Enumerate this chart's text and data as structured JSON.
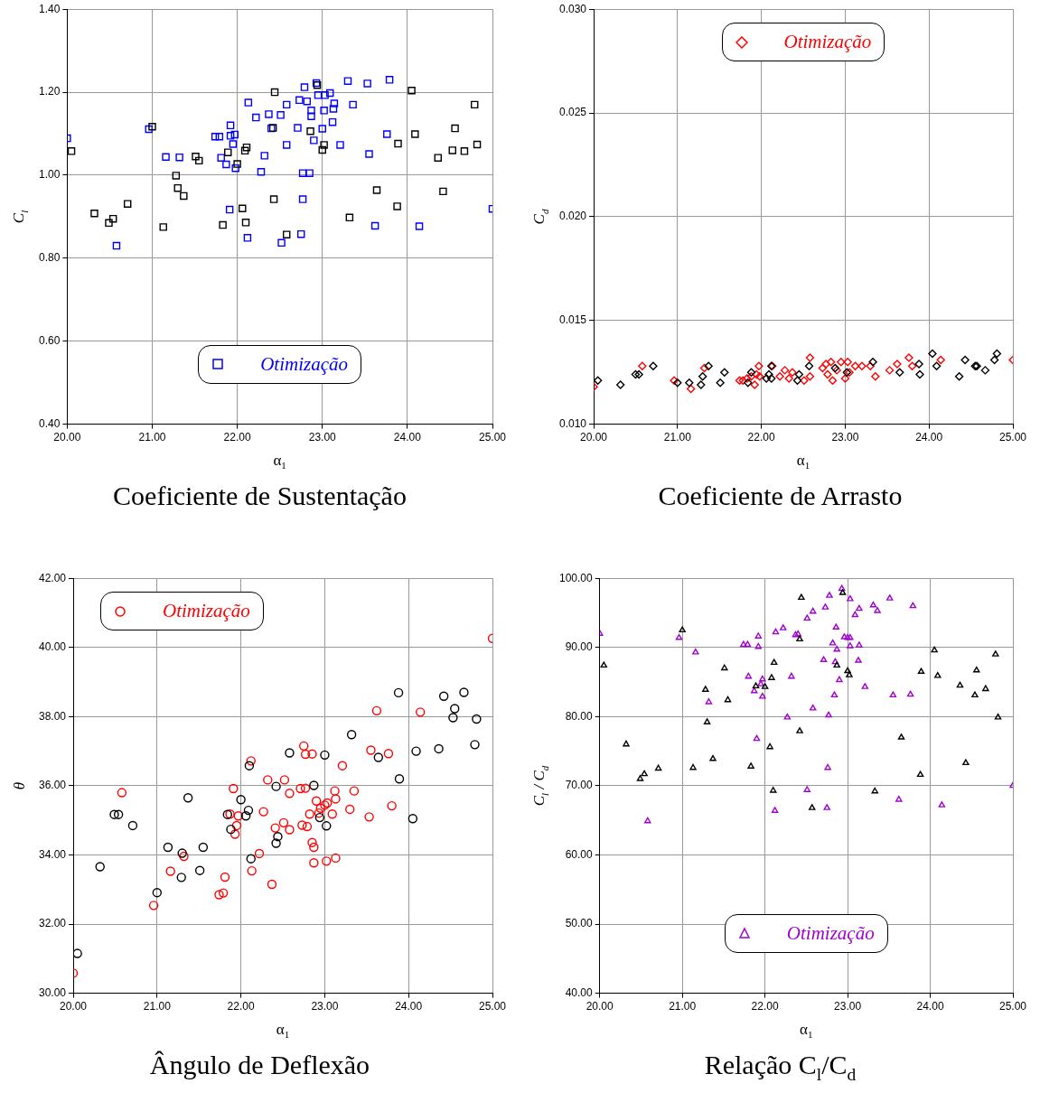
{
  "chart_data": [
    {
      "type": "scatter",
      "title": "Coeficiente de Sustentação",
      "xlabel": "α$_{1}$",
      "ylabel": "C$_{l}$",
      "xlim": [
        20,
        25
      ],
      "ylim": [
        0.4,
        1.4
      ],
      "xticks": [
        {
          "value": 20,
          "label": "20.00"
        },
        {
          "value": 21,
          "label": "21.00"
        },
        {
          "value": 22,
          "label": "22.00"
        },
        {
          "value": 23,
          "label": "23.00"
        },
        {
          "value": 24,
          "label": "24.00"
        },
        {
          "value": 25,
          "label": "25.00"
        }
      ],
      "yticks": [
        {
          "value": 0.4,
          "label": "0.40"
        },
        {
          "value": 0.6,
          "label": "0.60"
        },
        {
          "value": 0.8,
          "label": "0.80"
        },
        {
          "value": 1.0,
          "label": "1.00"
        },
        {
          "value": 1.2,
          "label": "1.20"
        },
        {
          "value": 1.4,
          "label": "1.40"
        }
      ],
      "grid": true,
      "legend": "bottom center",
      "marker": "square",
      "series": [
        {
          "color": "#000000",
          "x": [
            20.05,
            21.0,
            22.44,
            22.94,
            24.05,
            24.79,
            24.56,
            24.09,
            23.89,
            24.82,
            24.53,
            24.67,
            24.36,
            22.42,
            22.86,
            23.02,
            23.0,
            22.11,
            22.09,
            21.89,
            21.51,
            21.55,
            22.0,
            21.28,
            21.3,
            21.37,
            20.71,
            20.32,
            20.54,
            20.49,
            21.13,
            21.83,
            22.06,
            22.1,
            22.43,
            22.58,
            23.32,
            23.64,
            23.88,
            24.42
          ],
          "values": [
            1.058,
            1.117,
            1.2,
            1.217,
            1.204,
            1.17,
            1.113,
            1.099,
            1.076,
            1.074,
            1.06,
            1.058,
            1.042,
            1.114,
            1.106,
            1.073,
            1.061,
            1.067,
            1.059,
            1.055,
            1.045,
            1.035,
            1.027,
            0.999,
            0.969,
            0.95,
            0.931,
            0.908,
            0.895,
            0.885,
            0.875,
            0.88,
            0.92,
            0.886,
            0.942,
            0.857,
            0.898,
            0.964,
            0.925,
            0.961
          ]
        },
        {
          "name": "Otimização",
          "color": "#0000ff",
          "x": [
            20.0,
            20.96,
            21.16,
            21.32,
            21.74,
            21.79,
            21.92,
            21.92,
            21.97,
            21.95,
            21.81,
            21.87,
            21.98,
            22.13,
            22.22,
            22.37,
            22.51,
            22.58,
            22.73,
            22.82,
            22.79,
            22.93,
            22.95,
            23.03,
            23.09,
            23.14,
            23.13,
            22.87,
            22.87,
            23.02,
            23.12,
            23.3,
            23.53,
            23.79,
            23.36,
            22.71,
            23.0,
            22.4,
            22.58,
            22.9,
            23.21,
            23.55,
            23.76,
            22.32,
            22.28,
            22.77,
            22.85,
            21.91,
            22.77,
            22.12,
            22.52,
            22.75,
            23.62,
            24.14,
            25.0,
            20.58
          ],
          "values": [
            1.089,
            1.111,
            1.044,
            1.043,
            1.093,
            1.093,
            1.12,
            1.095,
            1.098,
            1.075,
            1.042,
            1.026,
            1.017,
            1.175,
            1.139,
            1.147,
            1.145,
            1.17,
            1.181,
            1.178,
            1.212,
            1.222,
            1.193,
            1.193,
            1.198,
            1.173,
            1.16,
            1.156,
            1.142,
            1.156,
            1.128,
            1.227,
            1.221,
            1.23,
            1.17,
            1.114,
            1.112,
            1.113,
            1.073,
            1.084,
            1.073,
            1.051,
            1.099,
            1.047,
            1.008,
            1.005,
            1.005,
            0.917,
            0.942,
            0.849,
            0.837,
            0.858,
            0.878,
            0.877,
            0.919,
            0.83
          ]
        }
      ]
    },
    {
      "type": "scatter",
      "title": "Coeficiente de Arrasto",
      "xlabel": "α$_{1}$",
      "ylabel": "C$_{d}$",
      "xlim": [
        20,
        25
      ],
      "ylim": [
        0.01,
        0.03
      ],
      "xticks": [
        {
          "value": 20,
          "label": "20.00"
        },
        {
          "value": 21,
          "label": "21.00"
        },
        {
          "value": 22,
          "label": "22.00"
        },
        {
          "value": 23,
          "label": "23.00"
        },
        {
          "value": 24,
          "label": "24.00"
        },
        {
          "value": 25,
          "label": "25.00"
        }
      ],
      "yticks": [
        {
          "value": 0.01,
          "label": "0.010"
        },
        {
          "value": 0.015,
          "label": "0.015"
        },
        {
          "value": 0.02,
          "label": "0.020"
        },
        {
          "value": 0.025,
          "label": "0.025"
        },
        {
          "value": 0.03,
          "label": "0.030"
        }
      ],
      "grid": true,
      "legend": "top center",
      "marker": "diamond",
      "series": [
        {
          "color": "#000000",
          "x": [
            20.05,
            20.32,
            20.5,
            20.54,
            20.71,
            21.0,
            21.14,
            21.28,
            21.3,
            21.37,
            21.51,
            21.56,
            21.84,
            21.88,
            22.06,
            22.09,
            22.12,
            22.12,
            22.45,
            22.43,
            22.57,
            22.88,
            23.02,
            23.33,
            23.65,
            23.88,
            23.89,
            24.04,
            24.09,
            24.36,
            24.43,
            24.55,
            24.57,
            24.67,
            24.78,
            24.81
          ],
          "values": [
            0.0121,
            0.0119,
            0.0124,
            0.0124,
            0.0128,
            0.012,
            0.012,
            0.0119,
            0.0123,
            0.0128,
            0.012,
            0.0125,
            0.012,
            0.0125,
            0.0122,
            0.0124,
            0.0122,
            0.0128,
            0.0124,
            0.0121,
            0.0128,
            0.0127,
            0.0125,
            0.013,
            0.0125,
            0.0129,
            0.0124,
            0.0134,
            0.0128,
            0.0123,
            0.0131,
            0.0128,
            0.0128,
            0.0126,
            0.0131,
            0.0134
          ]
        },
        {
          "name": "Otimização",
          "color": "#ff0000",
          "x": [
            20.0,
            20.58,
            20.96,
            21.16,
            21.32,
            21.74,
            21.78,
            21.83,
            21.88,
            21.92,
            21.94,
            21.97,
            21.98,
            22.13,
            22.22,
            22.28,
            22.33,
            22.37,
            22.51,
            22.58,
            22.58,
            22.73,
            22.77,
            22.83,
            22.79,
            22.85,
            22.9,
            22.95,
            23.03,
            23.05,
            23.0,
            23.12,
            23.2,
            23.3,
            23.36,
            23.53,
            23.62,
            23.76,
            23.8,
            24.14,
            25.0
          ],
          "values": [
            0.0118,
            0.0128,
            0.0121,
            0.0117,
            0.0127,
            0.0121,
            0.0121,
            0.0122,
            0.0123,
            0.0119,
            0.0124,
            0.0128,
            0.0123,
            0.0128,
            0.0123,
            0.0126,
            0.0122,
            0.0125,
            0.0121,
            0.0123,
            0.0132,
            0.0127,
            0.0129,
            0.013,
            0.0124,
            0.0121,
            0.0126,
            0.013,
            0.013,
            0.0125,
            0.0122,
            0.0128,
            0.0128,
            0.0128,
            0.0123,
            0.0126,
            0.0129,
            0.0132,
            0.0128,
            0.0131,
            0.0131
          ]
        }
      ]
    },
    {
      "type": "scatter",
      "title": "Ângulo de Deflexão",
      "xlabel": "α$_{1}$",
      "ylabel": "θ",
      "xlim": [
        20,
        25
      ],
      "ylim": [
        30,
        42
      ],
      "xticks": [
        {
          "value": 20,
          "label": "20.00"
        },
        {
          "value": 21,
          "label": "21.00"
        },
        {
          "value": 22,
          "label": "22.00"
        },
        {
          "value": 23,
          "label": "23.00"
        },
        {
          "value": 24,
          "label": "24.00"
        },
        {
          "value": 25,
          "label": "25.00"
        }
      ],
      "yticks": [
        {
          "value": 30,
          "label": "30.00"
        },
        {
          "value": 32,
          "label": "32.00"
        },
        {
          "value": 34,
          "label": "34.00"
        },
        {
          "value": 36,
          "label": "36.00"
        },
        {
          "value": 38,
          "label": "38.00"
        },
        {
          "value": 40,
          "label": "40.00"
        },
        {
          "value": 42,
          "label": "42.00"
        }
      ],
      "grid": true,
      "legend": "top left",
      "marker": "circle",
      "series": [
        {
          "color": "#000000",
          "x": [
            20.05,
            20.32,
            20.49,
            20.54,
            20.71,
            21.0,
            21.13,
            21.29,
            21.3,
            21.37,
            21.51,
            21.55,
            21.84,
            21.88,
            22.0,
            22.06,
            22.09,
            22.1,
            22.12,
            22.42,
            22.44,
            22.42,
            22.58,
            22.87,
            22.94,
            23.0,
            23.02,
            23.32,
            23.64,
            23.88,
            23.89,
            24.05,
            24.09,
            24.36,
            24.42,
            24.55,
            24.53,
            24.66,
            24.81,
            24.79
          ],
          "values": [
            31.15,
            33.66,
            35.17,
            35.17,
            34.85,
            32.91,
            34.22,
            33.35,
            34.05,
            35.65,
            33.55,
            34.22,
            35.17,
            34.74,
            35.6,
            35.13,
            35.29,
            36.58,
            33.89,
            35.98,
            34.53,
            34.34,
            36.95,
            36.01,
            35.08,
            36.89,
            34.84,
            37.48,
            36.82,
            38.69,
            36.2,
            35.05,
            37.0,
            37.07,
            38.59,
            38.23,
            37.97,
            38.7,
            37.93,
            37.19
          ]
        },
        {
          "name": "Otimização",
          "color": "#ff0000",
          "x": [
            20.0,
            20.58,
            20.96,
            21.16,
            21.32,
            21.74,
            21.79,
            21.81,
            21.91,
            21.87,
            21.97,
            21.95,
            21.93,
            22.12,
            22.13,
            22.22,
            22.27,
            22.32,
            22.37,
            22.41,
            22.52,
            22.51,
            22.58,
            22.58,
            22.71,
            22.77,
            22.75,
            22.77,
            22.85,
            22.73,
            22.79,
            22.82,
            22.85,
            22.87,
            22.87,
            22.9,
            22.93,
            22.95,
            23.0,
            23.03,
            23.09,
            23.13,
            23.12,
            23.02,
            23.13,
            23.21,
            23.3,
            23.35,
            23.53,
            23.55,
            23.62,
            23.76,
            23.8,
            24.14,
            25.0
          ],
          "values": [
            30.58,
            35.8,
            32.54,
            33.53,
            33.96,
            32.85,
            32.9,
            33.36,
            35.92,
            35.18,
            35.13,
            34.85,
            34.6,
            36.72,
            33.54,
            34.04,
            35.25,
            36.17,
            33.15,
            34.78,
            36.17,
            34.93,
            35.78,
            34.73,
            35.92,
            35.93,
            37.15,
            36.91,
            36.92,
            34.86,
            34.82,
            35.18,
            34.36,
            34.22,
            33.77,
            35.56,
            35.21,
            35.35,
            35.44,
            35.5,
            35.18,
            35.62,
            35.85,
            33.82,
            33.91,
            36.58,
            35.32,
            35.85,
            35.1,
            37.03,
            38.17,
            36.93,
            35.42,
            38.13,
            40.26
          ]
        }
      ]
    },
    {
      "type": "scatter",
      "title": "Relação C$_{l}$/C$_{d}$",
      "xlabel": "α$_{1}$",
      "ylabel": "C$_{l}$ / C$_{d}$",
      "xlim": [
        20,
        25
      ],
      "ylim": [
        40,
        100
      ],
      "xticks": [
        {
          "value": 20,
          "label": "20.00"
        },
        {
          "value": 21,
          "label": "21.00"
        },
        {
          "value": 22,
          "label": "22.00"
        },
        {
          "value": 23,
          "label": "23.00"
        },
        {
          "value": 24,
          "label": "24.00"
        },
        {
          "value": 25,
          "label": "25.00"
        }
      ],
      "yticks": [
        {
          "value": 40,
          "label": "40.00"
        },
        {
          "value": 50,
          "label": "50.00"
        },
        {
          "value": 60,
          "label": "60.00"
        },
        {
          "value": 70,
          "label": "70.00"
        },
        {
          "value": 80,
          "label": "80.00"
        },
        {
          "value": 90,
          "label": "90.00"
        },
        {
          "value": 100,
          "label": "100.00"
        }
      ],
      "grid": true,
      "legend": "bottom center",
      "marker": "triangle",
      "series": [
        {
          "color": "#000000",
          "x": [
            20.05,
            20.32,
            20.49,
            20.54,
            20.71,
            21.0,
            21.13,
            21.28,
            21.3,
            21.37,
            21.51,
            21.55,
            21.83,
            21.89,
            22.0,
            22.06,
            22.08,
            22.11,
            22.1,
            22.42,
            22.42,
            22.44,
            22.57,
            22.87,
            22.94,
            23.0,
            23.02,
            23.33,
            23.65,
            23.88,
            23.89,
            24.05,
            24.09,
            24.36,
            24.43,
            24.54,
            24.56,
            24.67,
            24.79,
            24.82
          ],
          "values": [
            87.4,
            76.0,
            71.0,
            71.7,
            72.5,
            92.5,
            72.6,
            83.9,
            79.2,
            73.9,
            87.0,
            82.4,
            72.8,
            84.4,
            84.3,
            75.6,
            85.6,
            87.8,
            69.3,
            91.2,
            77.9,
            97.2,
            66.8,
            87.4,
            97.9,
            86.6,
            86.0,
            69.2,
            77.0,
            71.6,
            86.5,
            89.6,
            85.9,
            84.5,
            73.3,
            83.1,
            86.7,
            84.0,
            89.0,
            79.9
          ]
        },
        {
          "name": "Otimização",
          "color": "#a000d0",
          "x": [
            20.0,
            20.58,
            20.96,
            21.16,
            21.32,
            21.74,
            21.79,
            21.8,
            21.87,
            21.9,
            21.92,
            21.92,
            21.95,
            21.97,
            21.97,
            22.12,
            22.13,
            22.22,
            22.27,
            22.32,
            22.37,
            22.4,
            22.51,
            22.51,
            22.58,
            22.58,
            22.71,
            22.73,
            22.75,
            22.77,
            22.76,
            22.78,
            22.82,
            22.84,
            22.85,
            22.86,
            22.87,
            22.9,
            22.93,
            22.96,
            23.0,
            23.03,
            23.03,
            23.03,
            23.09,
            23.13,
            23.14,
            23.14,
            23.21,
            23.31,
            23.36,
            23.51,
            23.55,
            23.62,
            23.76,
            23.79,
            24.14,
            25.0
          ],
          "values": [
            92.0,
            64.9,
            91.4,
            89.3,
            82.1,
            90.4,
            90.4,
            85.8,
            83.7,
            76.8,
            91.6,
            90.1,
            84.7,
            85.4,
            82.9,
            66.4,
            92.2,
            92.8,
            79.9,
            85.8,
            91.8,
            91.9,
            94.2,
            69.4,
            95.2,
            81.2,
            88.2,
            95.8,
            66.8,
            80.2,
            72.6,
            97.5,
            90.6,
            83.1,
            87.9,
            92.9,
            89.7,
            85.3,
            98.5,
            91.5,
            91.4,
            91.4,
            97.0,
            90.2,
            94.7,
            88.1,
            90.3,
            95.6,
            84.3,
            96.1,
            95.3,
            97.1,
            83.1,
            68.0,
            83.2,
            96.0,
            67.2,
            70.0
          ]
        }
      ]
    }
  ]
}
